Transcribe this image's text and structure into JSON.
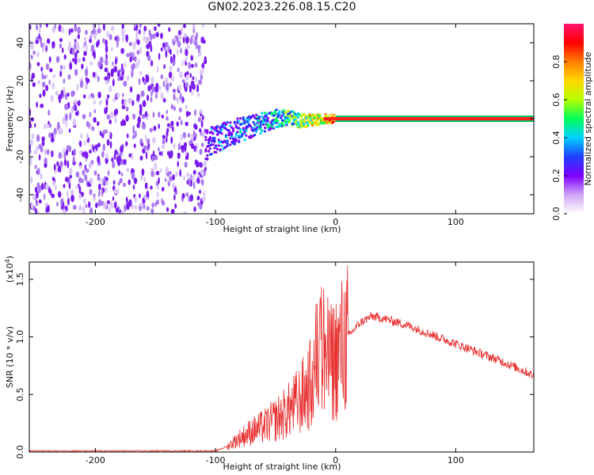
{
  "page": {
    "title": "GN02.2023.226.08.15.C20"
  },
  "chart_data": [
    {
      "type": "heatmap",
      "xlabel": "Height of straight line (km)",
      "ylabel": "Frequency (Hz)",
      "xlim": [
        -255,
        165
      ],
      "ylim": [
        -50,
        50
      ],
      "x_ticks": [
        -200,
        -100,
        0,
        100
      ],
      "y_ticks": [
        -40,
        -20,
        0,
        20,
        40
      ],
      "grid": false,
      "colorbar": {
        "label": "Normalized spectral amplitude",
        "range": [
          0,
          1
        ],
        "ticks": [
          "0.0",
          "0.2",
          "0.4",
          "0.6",
          "0.8"
        ],
        "colors": [
          "#ffffff",
          "#cfa5f5",
          "#7f00ff",
          "#1f3fff",
          "#00d0ff",
          "#00ff5a",
          "#b5ff00",
          "#ffd700",
          "#ff7f00",
          "#ff0000",
          "#ff1470"
        ]
      },
      "noise_region_x": [
        -255,
        -108
      ],
      "signal_track": [
        {
          "x": -108,
          "y": -14,
          "amplitude": 0.35
        },
        {
          "x": -100,
          "y": -11,
          "amplitude": 0.38
        },
        {
          "x": -90,
          "y": -8,
          "amplitude": 0.42
        },
        {
          "x": -80,
          "y": -6,
          "amplitude": 0.45
        },
        {
          "x": -70,
          "y": -4,
          "amplitude": 0.48
        },
        {
          "x": -60,
          "y": -2,
          "amplitude": 0.5
        },
        {
          "x": -50,
          "y": 0,
          "amplitude": 0.55
        },
        {
          "x": -40,
          "y": 1,
          "amplitude": 0.62
        },
        {
          "x": -30,
          "y": -1,
          "amplitude": 0.7
        },
        {
          "x": -20,
          "y": -1,
          "amplitude": 0.78
        },
        {
          "x": -10,
          "y": 0,
          "amplitude": 0.85
        },
        {
          "x": 0,
          "y": 0,
          "amplitude": 0.95
        },
        {
          "x": 165,
          "y": 0,
          "amplitude": 0.95
        }
      ]
    },
    {
      "type": "line",
      "xlabel": "Height of straight line (km)",
      "ylabel": "SNR (10 * v/v)",
      "y_multiplier_label": "(x10",
      "y_multiplier_exp": "4",
      "xlim": [
        -255,
        165
      ],
      "ylim": [
        0,
        1.65
      ],
      "x_ticks": [
        -200,
        -100,
        0,
        100
      ],
      "y_ticks": [
        "0.0",
        "0.5",
        "1.0",
        "1.5"
      ],
      "grid": false,
      "series": [
        {
          "color": "#e83030",
          "x": [
            -255,
            -200,
            -150,
            -100,
            -90,
            -80,
            -70,
            -60,
            -50,
            -40,
            -30,
            -20,
            -15,
            -10,
            -5,
            0,
            10,
            20,
            30,
            40,
            50,
            60,
            80,
            100,
            120,
            140,
            160,
            165
          ],
          "y": [
            0.01,
            0.01,
            0.01,
            0.01,
            0.05,
            0.12,
            0.18,
            0.22,
            0.28,
            0.35,
            0.45,
            0.6,
            0.85,
            0.9,
            0.75,
            0.82,
            1.0,
            1.12,
            1.18,
            1.16,
            1.13,
            1.1,
            1.02,
            0.94,
            0.86,
            0.78,
            0.69,
            0.66
          ]
        }
      ]
    }
  ]
}
